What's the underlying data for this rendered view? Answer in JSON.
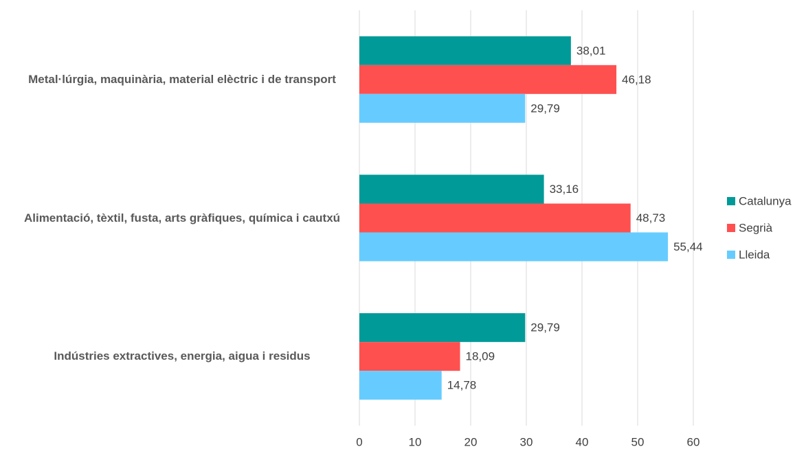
{
  "chart_data": {
    "type": "hbar",
    "categories": [
      "Metal·lúrgia, maquinària, material elèctric i de transport",
      "Alimentació, tèxtil, fusta, arts gràfiques, química i cautxú",
      "Indústries extractives, energia, aigua i residus"
    ],
    "series": [
      {
        "name": "Catalunya",
        "color": "#009a98",
        "values": [
          38.01,
          33.16,
          29.79
        ],
        "value_labels": [
          "38,01",
          "33,16",
          "29,79"
        ]
      },
      {
        "name": "Segrià",
        "color": "#ff5050",
        "values": [
          46.18,
          48.73,
          18.09
        ],
        "value_labels": [
          "46,18",
          "48,73",
          "18,09"
        ]
      },
      {
        "name": "Lleida",
        "color": "#66ccff",
        "values": [
          29.79,
          55.44,
          14.78
        ],
        "value_labels": [
          "29,79",
          "55,44",
          "14,78"
        ]
      }
    ],
    "xlim": [
      0,
      60
    ],
    "xticks": [
      0,
      10,
      20,
      30,
      40,
      50,
      60
    ],
    "grid": true,
    "legend": "right"
  }
}
